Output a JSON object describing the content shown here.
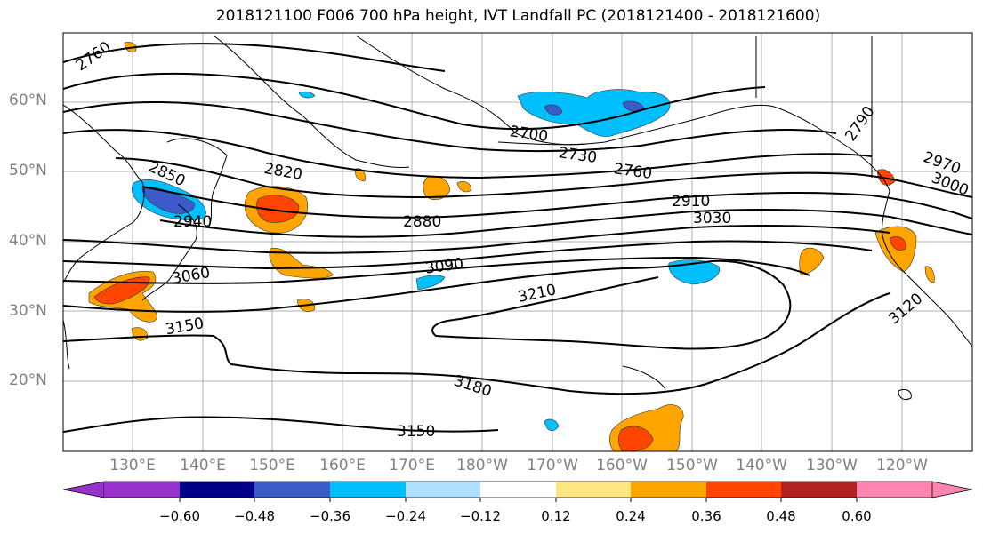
{
  "title": "2018121100 F006 700 hPa height, IVT Landfall PC (2018121400 - 2018121600)",
  "lat_labels": [
    "60°N",
    "50°N",
    "40°N",
    "30°N",
    "20°N"
  ],
  "lon_labels": [
    "130°E",
    "140°E",
    "150°E",
    "160°E",
    "170°E",
    "180°W",
    "170°W",
    "160°W",
    "150°W",
    "140°W",
    "130°W",
    "120°W"
  ],
  "contour_labels": [
    "2760",
    "2850",
    "2940",
    "2820",
    "2880",
    "3060",
    "3150",
    "3090",
    "3210",
    "3180",
    "3150",
    "2700",
    "2730",
    "2760",
    "2910",
    "3030",
    "2790",
    "2970",
    "3000",
    "3120"
  ],
  "colorbar": {
    "tick_labels": [
      "−0.60",
      "−0.48",
      "−0.36",
      "−0.24",
      "−0.12",
      "0.12",
      "0.24",
      "0.36",
      "0.48",
      "0.60"
    ],
    "colors": [
      "#9932cc",
      "#00008b",
      "#3a5bc8",
      "#00bfff",
      "#b0e0ff",
      "#ffffff",
      "#ffe680",
      "#ffa500",
      "#ff4500",
      "#b22222",
      "#ff85b0",
      "#ff85b0"
    ]
  },
  "colors": {
    "pos_med": "#ffa500",
    "pos_high": "#ff4500",
    "neg_med": "#00bfff",
    "neg_high": "#3a5bc8"
  }
}
